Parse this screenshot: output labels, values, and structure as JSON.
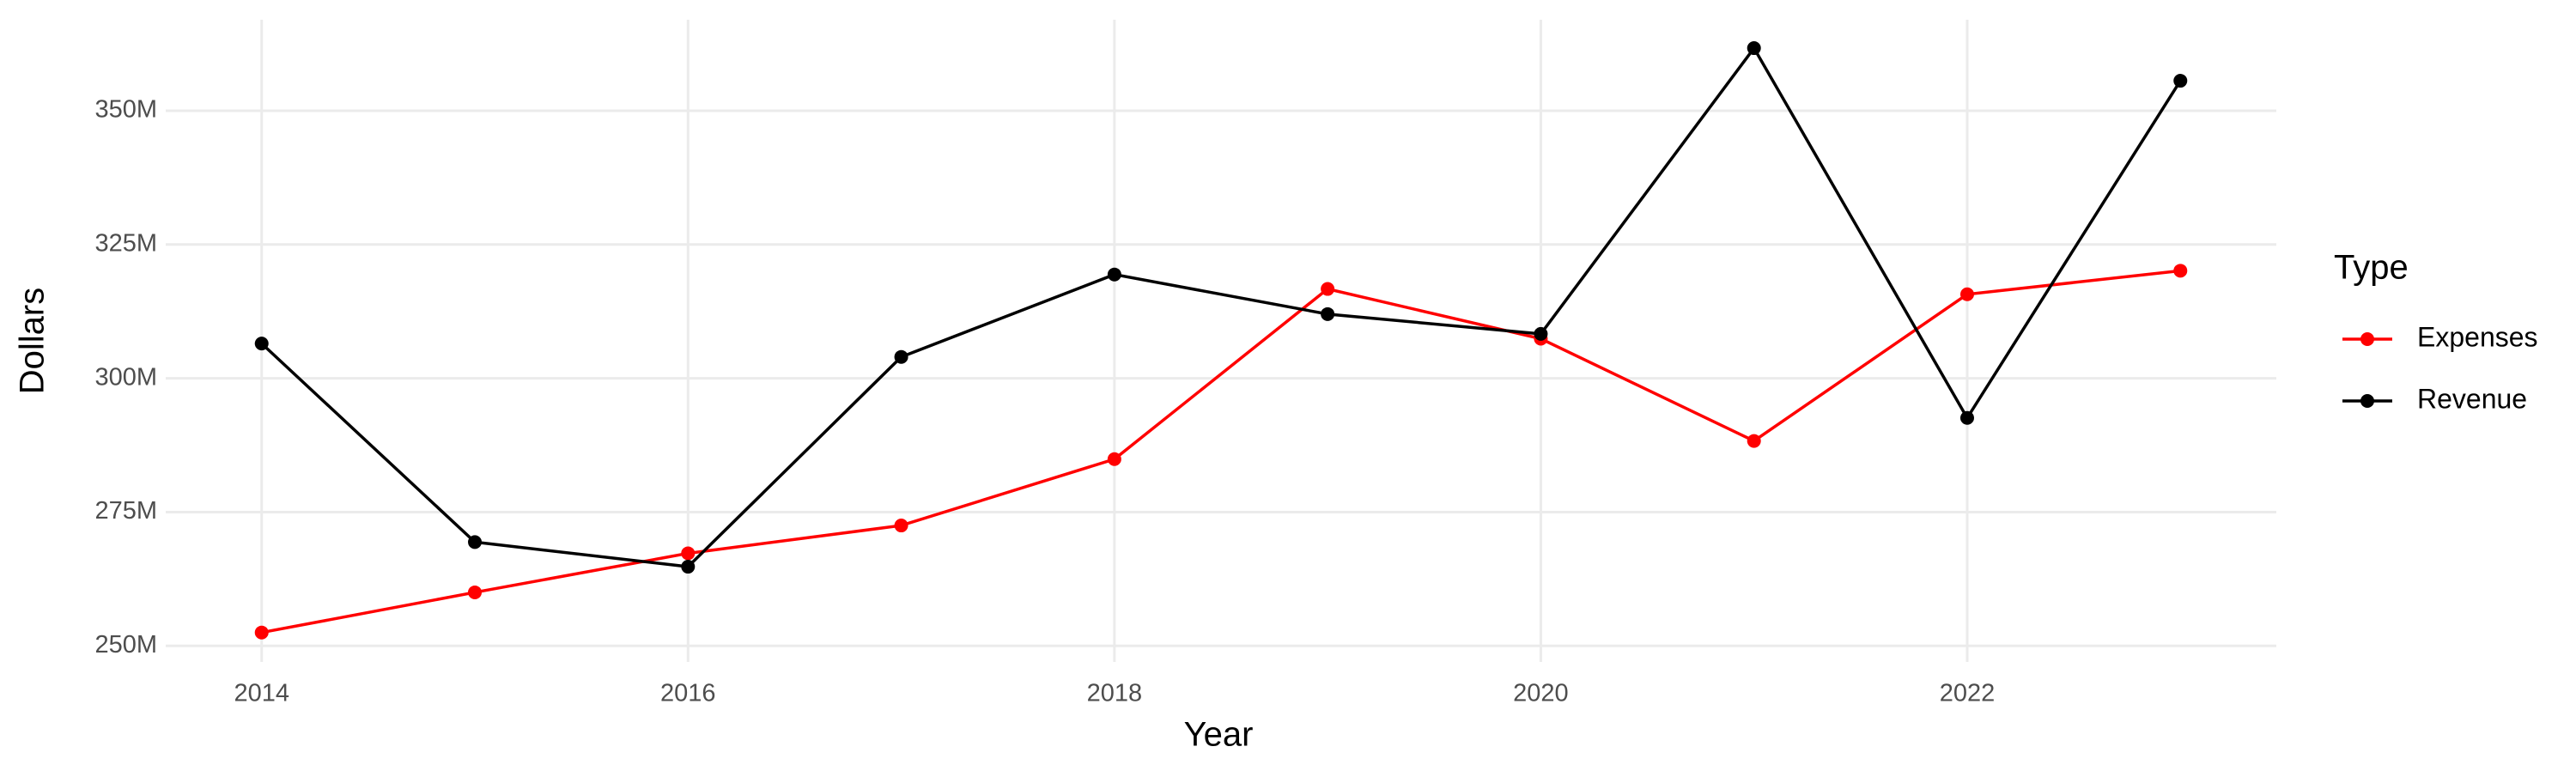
{
  "chart_data": {
    "type": "line",
    "x_label": "Year",
    "y_label": "Dollars",
    "legend_title": "Type",
    "x": [
      2014,
      2015,
      2016,
      2017,
      2018,
      2019,
      2020,
      2021,
      2022,
      2023
    ],
    "series": [
      {
        "name": "Expenses",
        "color": "#ff0000",
        "values": [
          252500000,
          260000000,
          267300000,
          272500000,
          284900000,
          316700000,
          307400000,
          288300000,
          315700000,
          320100000
        ]
      },
      {
        "name": "Revenue",
        "color": "#000000",
        "values": [
          306500000,
          269400000,
          264800000,
          304000000,
          319400000,
          312000000,
          308300000,
          361700000,
          292600000,
          355600000
        ]
      }
    ],
    "xlim": [
      2013.55,
      2023.45
    ],
    "xticks": [
      2014,
      2016,
      2018,
      2020,
      2022
    ],
    "ylim": [
      247000000,
      367000000
    ],
    "yticks": [
      {
        "value": 250000000,
        "label": "250M"
      },
      {
        "value": 275000000,
        "label": "275M"
      },
      {
        "value": 300000000,
        "label": "300M"
      },
      {
        "value": 325000000,
        "label": "325M"
      },
      {
        "value": 350000000,
        "label": "350M"
      }
    ],
    "grid": true,
    "legend": "right"
  }
}
